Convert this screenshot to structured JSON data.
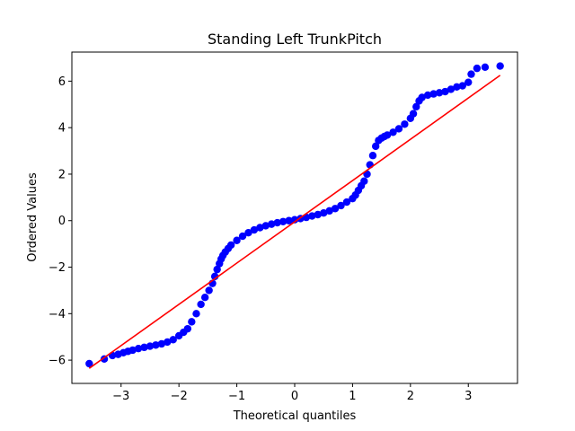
{
  "chart_data": {
    "type": "scatter",
    "title": "Standing Left TrunkPitch",
    "xlabel": "Theoretical quantiles",
    "ylabel": "Ordered Values",
    "xlim": [
      -3.85,
      3.85
    ],
    "ylim": [
      -7.0,
      7.25
    ],
    "xticks": [
      -3,
      -2,
      -1,
      0,
      1,
      2,
      3
    ],
    "yticks": [
      -6,
      -4,
      -2,
      0,
      2,
      4,
      6
    ],
    "xtick_labels": [
      "−3",
      "−2",
      "−1",
      "0",
      "1",
      "2",
      "3"
    ],
    "ytick_labels": [
      "−6",
      "−4",
      "−2",
      "0",
      "2",
      "4",
      "6"
    ],
    "grid": false,
    "colors": {
      "points": "#0000ff",
      "fit_line": "#ff0000"
    },
    "fit_line": {
      "x": [
        -3.55,
        3.55
      ],
      "y": [
        -6.35,
        6.25
      ]
    },
    "series": [
      {
        "x": [
          -3.55,
          -3.29,
          -3.15,
          -3.05,
          -2.96,
          -2.88,
          -2.8,
          -2.7,
          -2.6,
          -2.5,
          -2.4,
          -2.3,
          -2.2,
          -2.1,
          -2.0,
          -1.92,
          -1.85,
          -1.78,
          -1.7,
          -1.62,
          -1.55,
          -1.48,
          -1.42,
          -1.38,
          -1.34,
          -1.3,
          -1.27,
          -1.24,
          -1.2,
          -1.15,
          -1.1,
          -1.0,
          -0.9,
          -0.8,
          -0.7,
          -0.6,
          -0.5,
          -0.4,
          -0.3,
          -0.2,
          -0.1,
          0.0,
          0.1,
          0.2,
          0.3,
          0.4,
          0.5,
          0.6,
          0.7,
          0.8,
          0.9,
          1.0,
          1.05,
          1.1,
          1.15,
          1.2,
          1.25,
          1.3,
          1.35,
          1.4,
          1.45,
          1.5,
          1.55,
          1.6,
          1.7,
          1.8,
          1.9,
          2.0,
          2.05,
          2.1,
          2.15,
          2.2,
          2.3,
          2.4,
          2.5,
          2.6,
          2.7,
          2.8,
          2.9,
          3.0,
          3.05,
          3.15,
          3.29,
          3.55
        ],
        "y": [
          -6.15,
          -5.95,
          -5.8,
          -5.75,
          -5.68,
          -5.62,
          -5.57,
          -5.5,
          -5.45,
          -5.4,
          -5.35,
          -5.3,
          -5.22,
          -5.12,
          -4.95,
          -4.8,
          -4.65,
          -4.35,
          -4.0,
          -3.6,
          -3.3,
          -3.0,
          -2.7,
          -2.4,
          -2.1,
          -1.85,
          -1.65,
          -1.5,
          -1.35,
          -1.2,
          -1.05,
          -0.85,
          -0.67,
          -0.52,
          -0.4,
          -0.3,
          -0.22,
          -0.15,
          -0.09,
          -0.04,
          0.0,
          0.04,
          0.09,
          0.14,
          0.2,
          0.26,
          0.33,
          0.42,
          0.52,
          0.65,
          0.8,
          0.95,
          1.1,
          1.3,
          1.5,
          1.7,
          2.0,
          2.4,
          2.8,
          3.2,
          3.45,
          3.55,
          3.62,
          3.68,
          3.8,
          3.95,
          4.15,
          4.4,
          4.6,
          4.9,
          5.15,
          5.3,
          5.4,
          5.45,
          5.5,
          5.55,
          5.65,
          5.75,
          5.8,
          5.95,
          6.3,
          6.55,
          6.6,
          6.65
        ]
      }
    ]
  }
}
